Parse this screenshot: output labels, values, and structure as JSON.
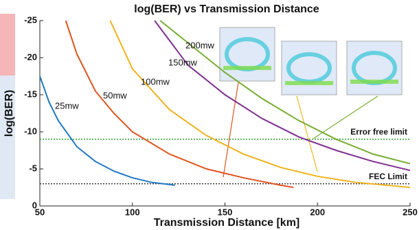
{
  "chart_data": {
    "type": "line",
    "title": "log(BER) vs Transmission Distance",
    "x_label": "Transmission Distance [km]",
    "y_label": "log(BER)",
    "xlim": [
      50,
      250
    ],
    "xticks": [
      50,
      100,
      150,
      200,
      250
    ],
    "ylim": [
      0,
      -25
    ],
    "yticks": [
      0,
      -5,
      -10,
      -15,
      -20,
      -25
    ],
    "series": [
      {
        "name": "25mw",
        "color": "#1f77c4",
        "x": [
          50,
          55,
          60,
          70,
          80,
          90,
          100,
          110,
          123
        ],
        "values": [
          -17.5,
          -14,
          -11.5,
          -8,
          -6,
          -4.7,
          -3.8,
          -3.2,
          -2.8
        ]
      },
      {
        "name": "50mw",
        "color": "#e0531f",
        "x": [
          64,
          70,
          80,
          90,
          100,
          120,
          140,
          160,
          180,
          187
        ],
        "values": [
          -25,
          -20.5,
          -15.5,
          -12.5,
          -10,
          -7,
          -5,
          -3.8,
          -2.8,
          -2.5
        ]
      },
      {
        "name": "100mw",
        "color": "#f0b21c",
        "x": [
          88,
          100,
          120,
          140,
          160,
          180,
          200,
          220,
          250
        ],
        "values": [
          -25,
          -18.5,
          -13,
          -9.5,
          -7,
          -5.2,
          -4,
          -3.2,
          -2.5
        ]
      },
      {
        "name": "150mw",
        "color": "#7e2f8e",
        "x": [
          112,
          130,
          150,
          170,
          190,
          210,
          230,
          250
        ],
        "values": [
          -25,
          -19,
          -15,
          -11.8,
          -9.3,
          -7.5,
          -6,
          -4.8
        ]
      },
      {
        "name": "200mw",
        "color": "#77ac30",
        "x": [
          115,
          130,
          150,
          170,
          190,
          210,
          230,
          250
        ],
        "values": [
          -25,
          -22,
          -18,
          -14.5,
          -11.5,
          -9,
          -7,
          -5.7
        ]
      }
    ],
    "reference_lines": [
      {
        "label": "Error free limit",
        "value": -9,
        "color": "#2ca02c"
      },
      {
        "label": "FEC Limit",
        "value": -3,
        "color": "#333333"
      }
    ]
  }
}
